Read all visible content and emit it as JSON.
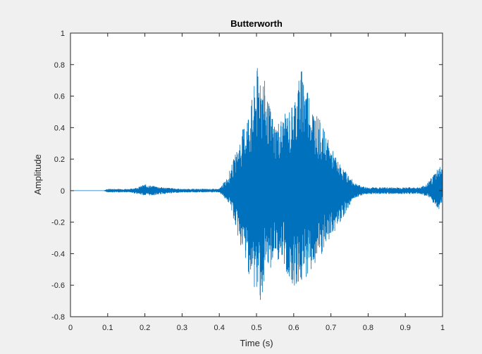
{
  "chart_data": {
    "type": "line",
    "title": "Butterworth",
    "xlabel": "Time (s)",
    "ylabel": "Amplitude",
    "xlim": [
      0,
      1
    ],
    "ylim": [
      -0.8,
      1
    ],
    "x_ticks": [
      0,
      0.1,
      0.2,
      0.3,
      0.4,
      0.5,
      0.6,
      0.7,
      0.8,
      0.9,
      1
    ],
    "x_tick_labels": [
      "0",
      "0.1",
      "0.2",
      "0.3",
      "0.4",
      "0.5",
      "0.6",
      "0.7",
      "0.8",
      "0.9",
      "1"
    ],
    "y_ticks": [
      -0.8,
      -0.6,
      -0.4,
      -0.2,
      0,
      0.2,
      0.4,
      0.6,
      0.8,
      1
    ],
    "y_tick_labels": [
      "-0.8",
      "-0.6",
      "-0.4",
      "-0.2",
      "0",
      "0.2",
      "0.4",
      "0.6",
      "0.8",
      "1"
    ],
    "grid": false,
    "series_color": "#0072bd",
    "series": [
      {
        "envelope_upper": [
          [
            0,
            0.0
          ],
          [
            0.09,
            0.0
          ],
          [
            0.1,
            0.01
          ],
          [
            0.16,
            0.01
          ],
          [
            0.18,
            0.02
          ],
          [
            0.2,
            0.04
          ],
          [
            0.22,
            0.03
          ],
          [
            0.25,
            0.02
          ],
          [
            0.3,
            0.01
          ],
          [
            0.35,
            0.01
          ],
          [
            0.4,
            0.01
          ],
          [
            0.42,
            0.08
          ],
          [
            0.43,
            0.14
          ],
          [
            0.45,
            0.28
          ],
          [
            0.47,
            0.45
          ],
          [
            0.49,
            0.6
          ],
          [
            0.5,
            0.77
          ],
          [
            0.51,
            0.82
          ],
          [
            0.52,
            0.72
          ],
          [
            0.53,
            0.58
          ],
          [
            0.55,
            0.43
          ],
          [
            0.57,
            0.47
          ],
          [
            0.59,
            0.52
          ],
          [
            0.6,
            0.58
          ],
          [
            0.61,
            0.7
          ],
          [
            0.62,
            0.78
          ],
          [
            0.63,
            0.76
          ],
          [
            0.65,
            0.55
          ],
          [
            0.67,
            0.45
          ],
          [
            0.7,
            0.28
          ],
          [
            0.72,
            0.18
          ],
          [
            0.74,
            0.12
          ],
          [
            0.76,
            0.06
          ],
          [
            0.78,
            0.03
          ],
          [
            0.8,
            0.02
          ],
          [
            0.85,
            0.02
          ],
          [
            0.9,
            0.02
          ],
          [
            0.94,
            0.02
          ],
          [
            0.96,
            0.05
          ],
          [
            0.98,
            0.12
          ],
          [
            0.99,
            0.17
          ],
          [
            1.0,
            0.14
          ]
        ],
        "envelope_lower": [
          [
            0,
            0.0
          ],
          [
            0.09,
            0.0
          ],
          [
            0.1,
            -0.01
          ],
          [
            0.16,
            -0.01
          ],
          [
            0.18,
            -0.02
          ],
          [
            0.2,
            -0.03
          ],
          [
            0.22,
            -0.03
          ],
          [
            0.25,
            -0.02
          ],
          [
            0.3,
            -0.01
          ],
          [
            0.35,
            -0.01
          ],
          [
            0.4,
            -0.01
          ],
          [
            0.42,
            -0.06
          ],
          [
            0.43,
            -0.1
          ],
          [
            0.45,
            -0.3
          ],
          [
            0.47,
            -0.45
          ],
          [
            0.49,
            -0.62
          ],
          [
            0.5,
            -0.66
          ],
          [
            0.51,
            -0.7
          ],
          [
            0.52,
            -0.66
          ],
          [
            0.53,
            -0.55
          ],
          [
            0.55,
            -0.42
          ],
          [
            0.57,
            -0.48
          ],
          [
            0.59,
            -0.58
          ],
          [
            0.6,
            -0.6
          ],
          [
            0.61,
            -0.62
          ],
          [
            0.62,
            -0.6
          ],
          [
            0.63,
            -0.56
          ],
          [
            0.65,
            -0.5
          ],
          [
            0.67,
            -0.45
          ],
          [
            0.7,
            -0.3
          ],
          [
            0.72,
            -0.22
          ],
          [
            0.74,
            -0.14
          ],
          [
            0.76,
            -0.05
          ],
          [
            0.78,
            -0.03
          ],
          [
            0.8,
            -0.02
          ],
          [
            0.85,
            -0.02
          ],
          [
            0.9,
            -0.02
          ],
          [
            0.94,
            -0.02
          ],
          [
            0.96,
            -0.04
          ],
          [
            0.98,
            -0.1
          ],
          [
            0.99,
            -0.12
          ],
          [
            1.0,
            -0.06
          ]
        ]
      }
    ]
  }
}
